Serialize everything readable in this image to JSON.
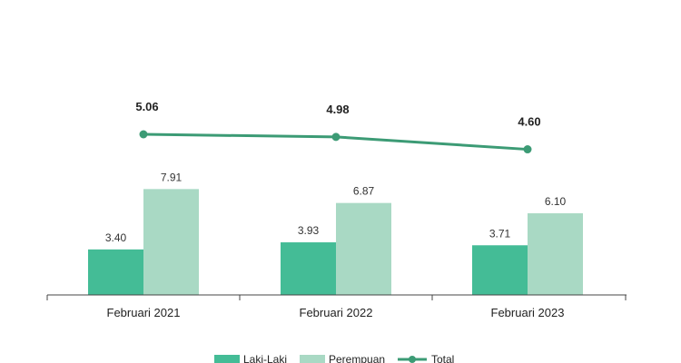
{
  "chart_data": {
    "type": "bar",
    "categories": [
      "Februari 2021",
      "Februari 2022",
      "Februari 2023"
    ],
    "series": [
      {
        "name": "Laki-Laki",
        "kind": "bar",
        "color": "#44bc96",
        "values": [
          3.4,
          3.93,
          3.71
        ]
      },
      {
        "name": "Perempuan",
        "kind": "bar",
        "color": "#a9d9c4",
        "values": [
          7.91,
          6.87,
          6.1
        ]
      },
      {
        "name": "Total",
        "kind": "line",
        "color": "#3c9b75",
        "values": [
          5.06,
          4.98,
          4.6
        ]
      }
    ],
    "value_labels": {
      "Laki-Laki": [
        "3.40",
        "3.93",
        "3.71"
      ],
      "Perempuan": [
        "7.91",
        "6.87",
        "6.10"
      ],
      "Total": [
        "5.06",
        "4.98",
        "4.60"
      ]
    },
    "legend_position": "bottom",
    "grid": false
  }
}
